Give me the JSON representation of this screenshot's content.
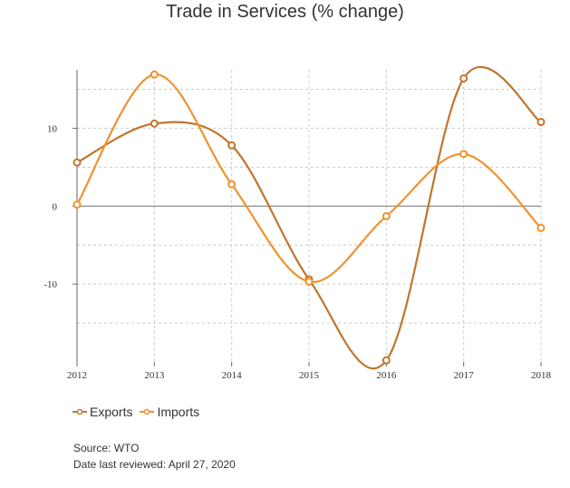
{
  "chart_data": {
    "type": "line",
    "title": "Trade in Services (% change)",
    "x": [
      "2012",
      "2013",
      "2014",
      "2015",
      "2016",
      "2017",
      "2018"
    ],
    "series": [
      {
        "name": "Exports",
        "color": "#c0762f",
        "values": [
          5.6,
          10.6,
          7.8,
          -9.4,
          -19.8,
          16.4,
          10.8
        ]
      },
      {
        "name": "Imports",
        "color": "#f0922e",
        "values": [
          0.2,
          16.9,
          2.8,
          -9.7,
          -1.3,
          6.7,
          -2.8
        ]
      }
    ],
    "yticks": [
      "10",
      "0",
      "-10"
    ],
    "ytick_values": [
      10,
      0,
      -10
    ],
    "ylim": [
      -20,
      17.5
    ],
    "grid": true,
    "legend_position": "bottom-left"
  },
  "footer": {
    "source": "Source: WTO",
    "reviewed": "Date last reviewed: April 27, 2020"
  }
}
